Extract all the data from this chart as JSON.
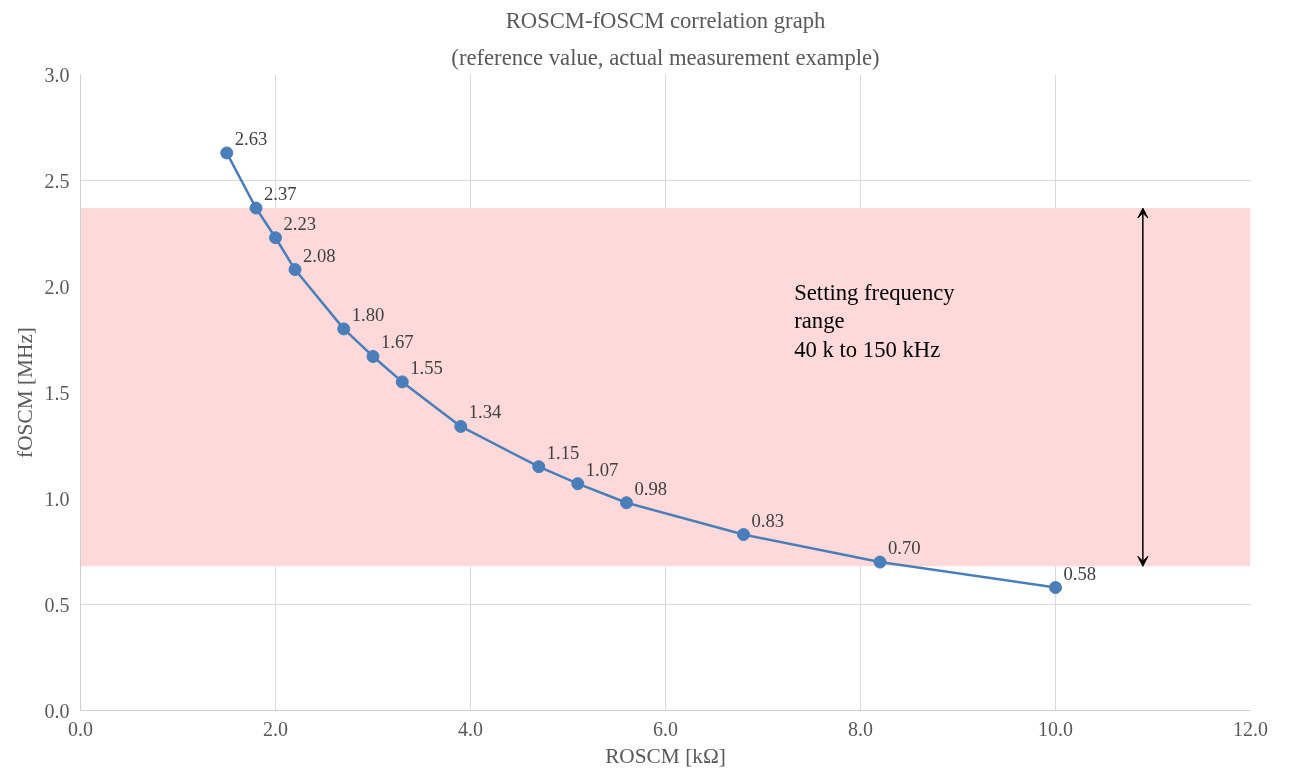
{
  "chart_data": {
    "type": "line",
    "title": "ROSCM-fOSCM correlation graph",
    "subtitle": "(reference value, actual measurement example)",
    "xlabel": "ROSCM [kΩ]",
    "ylabel": "fOSCM [MHz]",
    "x": [
      1.5,
      1.8,
      2.0,
      2.2,
      2.7,
      3.0,
      3.3,
      3.9,
      4.7,
      5.1,
      5.6,
      6.8,
      8.2,
      10.0
    ],
    "series": [
      {
        "color": "#4a7ebb",
        "values": [
          2.63,
          2.37,
          2.23,
          2.08,
          1.8,
          1.67,
          1.55,
          1.34,
          1.15,
          1.07,
          0.98,
          0.83,
          0.7,
          0.58
        ],
        "value_labels": [
          "2.63",
          "2.37",
          "2.23",
          "2.08",
          "1.80",
          "1.67",
          "1.55",
          "1.34",
          "1.15",
          "1.07",
          "0.98",
          "0.83",
          "0.70",
          "0.58"
        ]
      }
    ],
    "marker": "circle",
    "line_style": "solid",
    "grid": true,
    "xlim": [
      0,
      12
    ],
    "ylim": [
      0,
      3
    ],
    "xticks": [
      {
        "value": 0,
        "label": "0.0"
      },
      {
        "value": 2,
        "label": "2.0"
      },
      {
        "value": 4,
        "label": "4.0"
      },
      {
        "value": 6,
        "label": "6.0"
      },
      {
        "value": 8,
        "label": "8.0"
      },
      {
        "value": 10,
        "label": "10.0"
      },
      {
        "value": 12,
        "label": "12.0"
      }
    ],
    "yticks": [
      {
        "value": 0,
        "label": "0.0"
      },
      {
        "value": 0.5,
        "label": "0.5"
      },
      {
        "value": 1,
        "label": "1.0"
      },
      {
        "value": 1.5,
        "label": "1.5"
      },
      {
        "value": 2,
        "label": "2.0"
      },
      {
        "value": 2.5,
        "label": "2.5"
      },
      {
        "value": 3,
        "label": "3.0"
      }
    ],
    "bands": [
      {
        "axis": "y",
        "from": 0.68,
        "to": 2.37,
        "color": "#fdd9d9",
        "label": "Setting frequency\nrange\n40 k to 150 kHz"
      }
    ]
  }
}
